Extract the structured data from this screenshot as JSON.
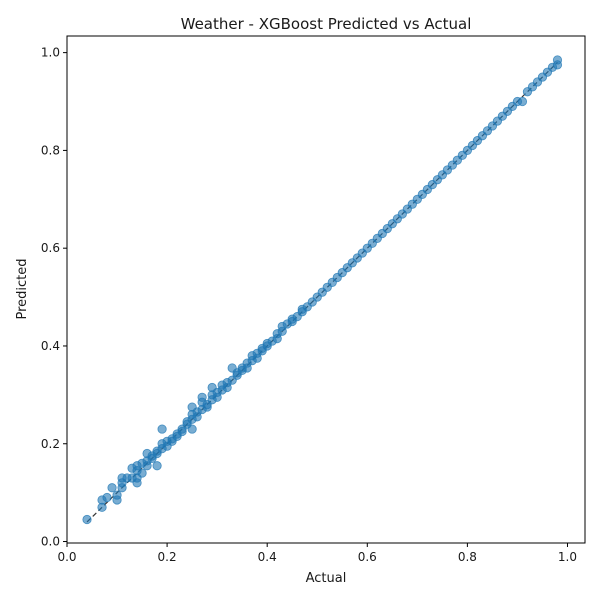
{
  "chart_data": {
    "type": "scatter",
    "title": "Weather - XGBoost Predicted vs Actual",
    "xlabel": "Actual",
    "ylabel": "Predicted",
    "xlim": [
      0.0,
      1.035
    ],
    "ylim": [
      -0.003,
      1.034
    ],
    "xticks": [
      0.0,
      0.2,
      0.4,
      0.6,
      0.8,
      1.0
    ],
    "yticks": [
      0.0,
      0.2,
      0.4,
      0.6,
      0.8,
      1.0
    ],
    "xtick_labels": [
      "0.0",
      "0.2",
      "0.4",
      "0.6",
      "0.8",
      "1.0"
    ],
    "ytick_labels": [
      "0.0",
      "0.2",
      "0.4",
      "0.6",
      "0.8",
      "1.0"
    ],
    "grid": false,
    "reference_line": {
      "style": "dashed",
      "color": "#333333",
      "from": [
        0.04,
        0.04
      ],
      "to": [
        0.98,
        0.98
      ]
    },
    "point_color": "#1f77b4",
    "points": [
      [
        0.04,
        0.045
      ],
      [
        0.07,
        0.07
      ],
      [
        0.07,
        0.085
      ],
      [
        0.08,
        0.09
      ],
      [
        0.09,
        0.11
      ],
      [
        0.1,
        0.085
      ],
      [
        0.1,
        0.095
      ],
      [
        0.11,
        0.11
      ],
      [
        0.11,
        0.12
      ],
      [
        0.11,
        0.13
      ],
      [
        0.12,
        0.13
      ],
      [
        0.13,
        0.13
      ],
      [
        0.13,
        0.15
      ],
      [
        0.14,
        0.12
      ],
      [
        0.14,
        0.13
      ],
      [
        0.14,
        0.145
      ],
      [
        0.14,
        0.155
      ],
      [
        0.15,
        0.14
      ],
      [
        0.15,
        0.16
      ],
      [
        0.16,
        0.155
      ],
      [
        0.16,
        0.165
      ],
      [
        0.16,
        0.18
      ],
      [
        0.17,
        0.17
      ],
      [
        0.17,
        0.175
      ],
      [
        0.18,
        0.155
      ],
      [
        0.18,
        0.18
      ],
      [
        0.18,
        0.185
      ],
      [
        0.19,
        0.19
      ],
      [
        0.19,
        0.23
      ],
      [
        0.19,
        0.2
      ],
      [
        0.2,
        0.195
      ],
      [
        0.2,
        0.205
      ],
      [
        0.21,
        0.21
      ],
      [
        0.21,
        0.205
      ],
      [
        0.22,
        0.22
      ],
      [
        0.22,
        0.215
      ],
      [
        0.23,
        0.23
      ],
      [
        0.23,
        0.225
      ],
      [
        0.24,
        0.24
      ],
      [
        0.24,
        0.245
      ],
      [
        0.25,
        0.23
      ],
      [
        0.25,
        0.25
      ],
      [
        0.25,
        0.26
      ],
      [
        0.25,
        0.275
      ],
      [
        0.26,
        0.255
      ],
      [
        0.26,
        0.265
      ],
      [
        0.27,
        0.27
      ],
      [
        0.27,
        0.285
      ],
      [
        0.27,
        0.295
      ],
      [
        0.28,
        0.275
      ],
      [
        0.28,
        0.28
      ],
      [
        0.29,
        0.29
      ],
      [
        0.29,
        0.3
      ],
      [
        0.29,
        0.315
      ],
      [
        0.3,
        0.295
      ],
      [
        0.3,
        0.305
      ],
      [
        0.31,
        0.31
      ],
      [
        0.31,
        0.32
      ],
      [
        0.32,
        0.315
      ],
      [
        0.32,
        0.325
      ],
      [
        0.33,
        0.33
      ],
      [
        0.33,
        0.355
      ],
      [
        0.34,
        0.34
      ],
      [
        0.34,
        0.345
      ],
      [
        0.35,
        0.35
      ],
      [
        0.35,
        0.355
      ],
      [
        0.36,
        0.355
      ],
      [
        0.36,
        0.365
      ],
      [
        0.37,
        0.37
      ],
      [
        0.37,
        0.38
      ],
      [
        0.38,
        0.375
      ],
      [
        0.38,
        0.385
      ],
      [
        0.39,
        0.39
      ],
      [
        0.39,
        0.395
      ],
      [
        0.4,
        0.4
      ],
      [
        0.4,
        0.405
      ],
      [
        0.41,
        0.41
      ],
      [
        0.42,
        0.415
      ],
      [
        0.42,
        0.425
      ],
      [
        0.43,
        0.43
      ],
      [
        0.43,
        0.44
      ],
      [
        0.44,
        0.445
      ],
      [
        0.45,
        0.45
      ],
      [
        0.45,
        0.455
      ],
      [
        0.46,
        0.46
      ],
      [
        0.47,
        0.47
      ],
      [
        0.47,
        0.475
      ],
      [
        0.48,
        0.48
      ],
      [
        0.49,
        0.49
      ],
      [
        0.5,
        0.5
      ],
      [
        0.51,
        0.51
      ],
      [
        0.52,
        0.52
      ],
      [
        0.53,
        0.53
      ],
      [
        0.54,
        0.54
      ],
      [
        0.55,
        0.55
      ],
      [
        0.56,
        0.56
      ],
      [
        0.57,
        0.57
      ],
      [
        0.58,
        0.58
      ],
      [
        0.59,
        0.59
      ],
      [
        0.6,
        0.6
      ],
      [
        0.61,
        0.61
      ],
      [
        0.62,
        0.62
      ],
      [
        0.63,
        0.63
      ],
      [
        0.64,
        0.64
      ],
      [
        0.65,
        0.65
      ],
      [
        0.66,
        0.66
      ],
      [
        0.67,
        0.67
      ],
      [
        0.68,
        0.68
      ],
      [
        0.69,
        0.69
      ],
      [
        0.7,
        0.7
      ],
      [
        0.71,
        0.71
      ],
      [
        0.72,
        0.72
      ],
      [
        0.73,
        0.73
      ],
      [
        0.74,
        0.74
      ],
      [
        0.75,
        0.75
      ],
      [
        0.76,
        0.76
      ],
      [
        0.77,
        0.77
      ],
      [
        0.78,
        0.78
      ],
      [
        0.79,
        0.79
      ],
      [
        0.8,
        0.8
      ],
      [
        0.81,
        0.81
      ],
      [
        0.82,
        0.82
      ],
      [
        0.83,
        0.83
      ],
      [
        0.84,
        0.84
      ],
      [
        0.85,
        0.85
      ],
      [
        0.86,
        0.86
      ],
      [
        0.87,
        0.87
      ],
      [
        0.88,
        0.88
      ],
      [
        0.89,
        0.89
      ],
      [
        0.9,
        0.9
      ],
      [
        0.91,
        0.9
      ],
      [
        0.92,
        0.92
      ],
      [
        0.93,
        0.93
      ],
      [
        0.94,
        0.94
      ],
      [
        0.95,
        0.95
      ],
      [
        0.96,
        0.96
      ],
      [
        0.97,
        0.97
      ],
      [
        0.98,
        0.975
      ],
      [
        0.98,
        0.985
      ]
    ]
  }
}
